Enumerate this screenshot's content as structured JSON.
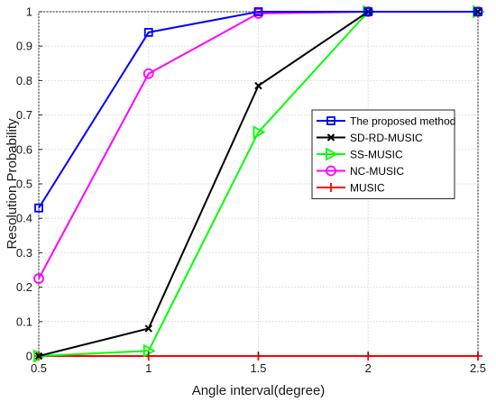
{
  "chart_data": {
    "type": "line",
    "title": "",
    "xlabel": "Angle interval(degree)",
    "ylabel": "Resolution Probability",
    "x": [
      0.5,
      1,
      1.5,
      2,
      2.5
    ],
    "xlim": [
      0.5,
      2.5
    ],
    "ylim": [
      0,
      1
    ],
    "x_ticks": [
      "0.5",
      "1",
      "1.5",
      "2",
      "2.5"
    ],
    "y_ticks": [
      "0",
      "0.1",
      "0.2",
      "0.3",
      "0.4",
      "0.5",
      "0.6",
      "0.7",
      "0.8",
      "0.9",
      "1"
    ],
    "grid": true,
    "legend_position": "center-right",
    "series": [
      {
        "name": "The proposed method",
        "color": "#0000ff",
        "marker": "square",
        "values": [
          0.43,
          0.94,
          1,
          1,
          1
        ]
      },
      {
        "name": "SD-RD-MUSIC",
        "color": "#000000",
        "marker": "x",
        "values": [
          0,
          0.08,
          0.785,
          1,
          1
        ]
      },
      {
        "name": "SS-MUSIC",
        "color": "#00ff00",
        "marker": "triangle-right",
        "values": [
          0,
          0.015,
          0.65,
          1,
          1
        ]
      },
      {
        "name": "NC-MUSIC",
        "color": "#ff00ff",
        "marker": "circle",
        "values": [
          0.225,
          0.82,
          0.995,
          1,
          1
        ]
      },
      {
        "name": "MUSIC",
        "color": "#ff0000",
        "marker": "plus",
        "values": [
          0,
          0,
          0,
          0,
          0
        ]
      }
    ]
  }
}
